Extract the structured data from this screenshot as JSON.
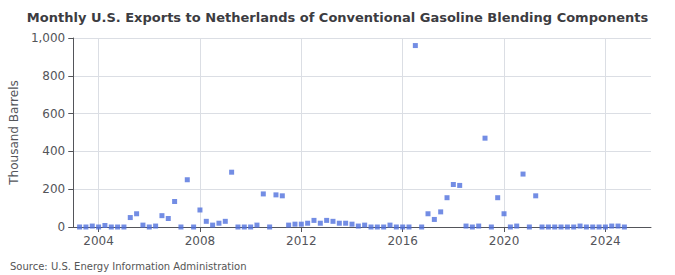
{
  "chart_data": {
    "type": "scatter",
    "title": "Monthly U.S. Exports to Netherlands of Conventional Gasoline Blending Components",
    "ylabel": "Thousand Barrels",
    "annotations": [
      "Source: U.S. Energy Information Administration"
    ],
    "marker": "square",
    "grid": true,
    "xlim": [
      2003.0,
      2025.8
    ],
    "xticks": [
      2004,
      2008,
      2012,
      2016,
      2020,
      2024
    ],
    "ylim": [
      0,
      1000
    ],
    "yticks": [
      0,
      200,
      400,
      600,
      800,
      {
        "value": 1000,
        "label": "1,000"
      }
    ],
    "x": [
      2003.25,
      2003.5,
      2003.75,
      2004.0,
      2004.25,
      2004.5,
      2004.75,
      2005.0,
      2005.25,
      2005.5,
      2005.75,
      2006.0,
      2006.25,
      2006.5,
      2006.75,
      2007.0,
      2007.25,
      2007.5,
      2007.75,
      2008.0,
      2008.25,
      2008.5,
      2008.75,
      2009.0,
      2009.25,
      2009.5,
      2009.75,
      2010.0,
      2010.25,
      2010.5,
      2010.75,
      2011.0,
      2011.25,
      2011.5,
      2011.75,
      2012.0,
      2012.25,
      2012.5,
      2012.75,
      2013.0,
      2013.25,
      2013.5,
      2013.75,
      2014.0,
      2014.25,
      2014.5,
      2014.75,
      2015.0,
      2015.25,
      2015.5,
      2015.75,
      2016.0,
      2016.25,
      2016.5,
      2016.75,
      2017.0,
      2017.25,
      2017.5,
      2017.75,
      2018.0,
      2018.25,
      2018.5,
      2018.75,
      2019.0,
      2019.25,
      2019.5,
      2019.75,
      2020.0,
      2020.25,
      2020.5,
      2020.75,
      2021.0,
      2021.25,
      2021.5,
      2021.75,
      2022.0,
      2022.25,
      2022.5,
      2022.75,
      2023.0,
      2023.25,
      2023.5,
      2023.75,
      2024.0,
      2024.25,
      2024.5,
      2024.75
    ],
    "values": [
      0,
      0,
      5,
      0,
      8,
      0,
      0,
      0,
      50,
      70,
      10,
      0,
      5,
      60,
      45,
      135,
      0,
      250,
      0,
      90,
      30,
      10,
      20,
      30,
      290,
      0,
      0,
      0,
      10,
      175,
      0,
      170,
      165,
      10,
      15,
      15,
      20,
      35,
      20,
      35,
      30,
      20,
      20,
      15,
      5,
      10,
      0,
      0,
      0,
      10,
      0,
      0,
      0,
      960,
      0,
      70,
      40,
      80,
      155,
      225,
      220,
      5,
      0,
      5,
      470,
      0,
      155,
      70,
      0,
      5,
      280,
      0,
      165,
      0,
      0,
      0,
      0,
      0,
      0,
      5,
      0,
      0,
      0,
      0,
      5,
      5,
      0
    ]
  }
}
